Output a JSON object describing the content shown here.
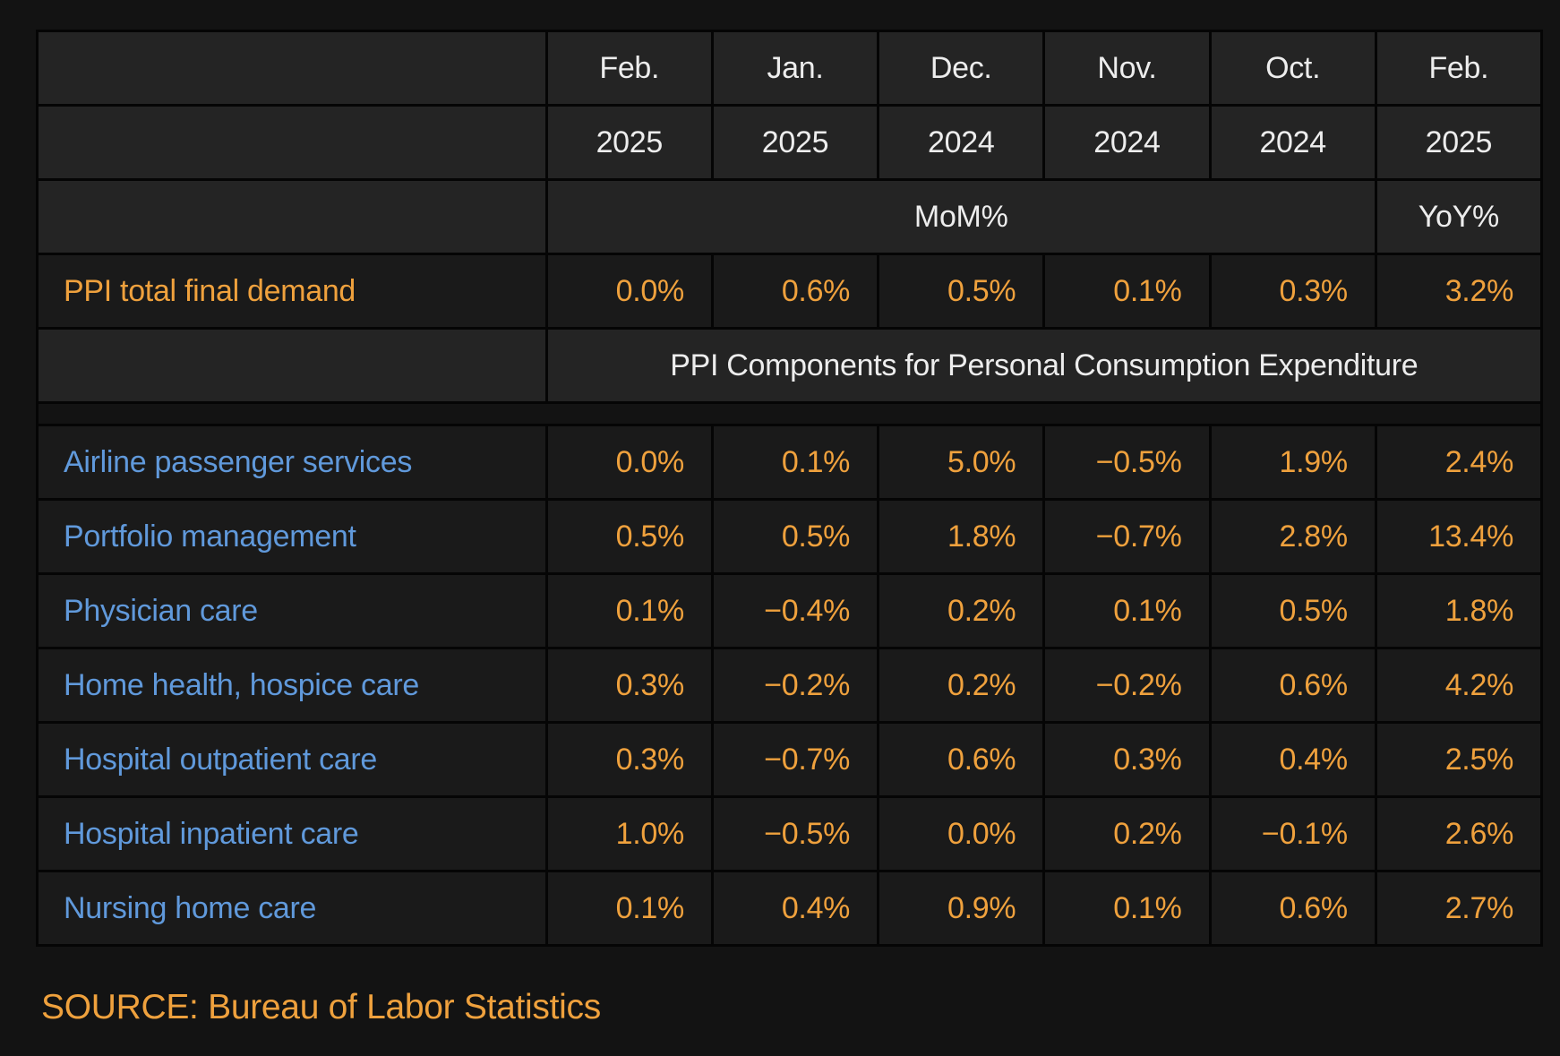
{
  "table": {
    "column_headers": {
      "months": [
        "Feb.",
        "Jan.",
        "Dec.",
        "Nov.",
        "Oct.",
        "Feb."
      ],
      "years": [
        "2025",
        "2025",
        "2024",
        "2024",
        "2024",
        "2025"
      ],
      "mom_label": "MoM%",
      "yoy_label": "YoY%"
    },
    "total_row": {
      "label": "PPI total final demand",
      "values": [
        "0.0%",
        "0.6%",
        "0.5%",
        "0.1%",
        "0.3%",
        "3.2%"
      ]
    },
    "section_header": "PPI Components for Personal Consumption Expenditure",
    "component_rows": [
      {
        "label": "Airline passenger services",
        "values": [
          "0.0%",
          "0.1%",
          "5.0%",
          "−0.5%",
          "1.9%",
          "2.4%"
        ]
      },
      {
        "label": "Portfolio management",
        "values": [
          "0.5%",
          "0.5%",
          "1.8%",
          "−0.7%",
          "2.8%",
          "13.4%"
        ]
      },
      {
        "label": "Physician care",
        "values": [
          "0.1%",
          "−0.4%",
          "0.2%",
          "0.1%",
          "0.5%",
          "1.8%"
        ]
      },
      {
        "label": "Home health, hospice care",
        "values": [
          "0.3%",
          "−0.2%",
          "0.2%",
          "−0.2%",
          "0.6%",
          "4.2%"
        ]
      },
      {
        "label": "Hospital outpatient care",
        "values": [
          "0.3%",
          "−0.7%",
          "0.6%",
          "0.3%",
          "0.4%",
          "2.5%"
        ]
      },
      {
        "label": "Hospital inpatient care",
        "values": [
          "1.0%",
          "−0.5%",
          "0.0%",
          "0.2%",
          "−0.1%",
          "2.6%"
        ]
      },
      {
        "label": "Nursing home care",
        "values": [
          "0.1%",
          "0.4%",
          "0.9%",
          "0.1%",
          "0.6%",
          "2.7%"
        ]
      }
    ],
    "source": "SOURCE: Bureau of Labor Statistics"
  },
  "colors": {
    "page_background": "#131313",
    "cell_border": "#050505",
    "header_cell_background": "#242424",
    "body_cell_background": "#1A1A1A",
    "header_text": "#EDEDED",
    "value_orange": "#EFA13D",
    "component_blue": "#6099DB"
  },
  "chart_data": {
    "type": "table",
    "title": "PPI total final demand and PPI Components for Personal Consumption Expenditure",
    "columns": [
      "Feb. 2025",
      "Jan. 2025",
      "Dec. 2024",
      "Nov. 2024",
      "Oct. 2024",
      "Feb. 2025"
    ],
    "column_measures": [
      "MoM%",
      "MoM%",
      "MoM%",
      "MoM%",
      "MoM%",
      "YoY%"
    ],
    "rows": [
      {
        "label": "PPI total final demand",
        "values": [
          0.0,
          0.6,
          0.5,
          0.1,
          0.3,
          3.2
        ]
      },
      {
        "label": "Airline passenger services",
        "values": [
          0.0,
          0.1,
          5.0,
          -0.5,
          1.9,
          2.4
        ]
      },
      {
        "label": "Portfolio management",
        "values": [
          0.5,
          0.5,
          1.8,
          -0.7,
          2.8,
          13.4
        ]
      },
      {
        "label": "Physician care",
        "values": [
          0.1,
          -0.4,
          0.2,
          0.1,
          0.5,
          1.8
        ]
      },
      {
        "label": "Home health, hospice care",
        "values": [
          0.3,
          -0.2,
          0.2,
          -0.2,
          0.6,
          4.2
        ]
      },
      {
        "label": "Hospital outpatient care",
        "values": [
          0.3,
          -0.7,
          0.6,
          0.3,
          0.4,
          2.5
        ]
      },
      {
        "label": "Hospital inpatient care",
        "values": [
          1.0,
          -0.5,
          0.0,
          0.2,
          -0.1,
          2.6
        ]
      },
      {
        "label": "Nursing home care",
        "values": [
          0.1,
          0.4,
          0.9,
          0.1,
          0.6,
          2.7
        ]
      }
    ],
    "section_label": "PPI Components for Personal Consumption Expenditure",
    "source": "SOURCE: Bureau of Labor Statistics"
  }
}
